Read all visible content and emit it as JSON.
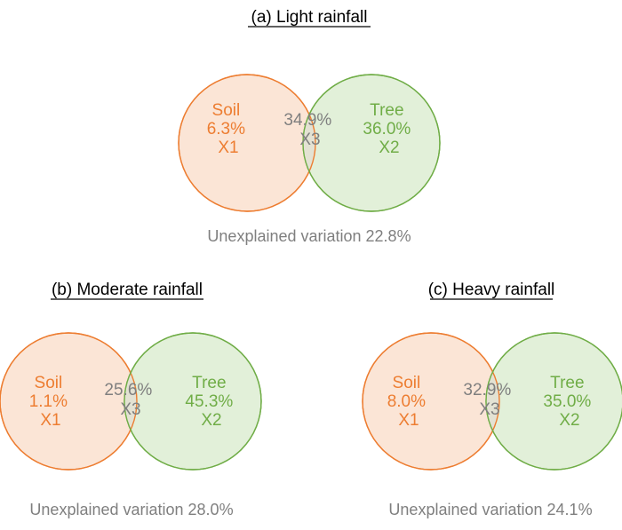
{
  "colors": {
    "soil": "#ED7D31",
    "soil_fill": "#FBE5D6",
    "tree": "#70AD47",
    "tree_fill": "#E2F0D9",
    "overlap": "#E3E2D3",
    "shared_text": "#7F7F7F",
    "unexplained_text": "#7F7F7F",
    "title_text": "#000000"
  },
  "panels": [
    {
      "title": "(a) Light rainfall",
      "soil": {
        "name": "Soil",
        "value": "6.3%",
        "code": "X1"
      },
      "shared": {
        "value": "34.9%",
        "code": "X3"
      },
      "tree": {
        "name": "Tree",
        "value": "36.0%",
        "code": "X2"
      },
      "unexplained": "Unexplained variation 22.8%"
    },
    {
      "title": "(b) Moderate rainfall",
      "soil": {
        "name": "Soil",
        "value": "1.1%",
        "code": "X1"
      },
      "shared": {
        "value": "25.6%",
        "code": "X3"
      },
      "tree": {
        "name": "Tree",
        "value": "45.3%",
        "code": "X2"
      },
      "unexplained": "Unexplained variation 28.0%"
    },
    {
      "title": "(c) Heavy rainfall",
      "soil": {
        "name": "Soil",
        "value": "8.0%",
        "code": "X1"
      },
      "shared": {
        "value": "32.9%",
        "code": "X3"
      },
      "tree": {
        "name": "Tree",
        "value": "35.0%",
        "code": "X2"
      },
      "unexplained": "Unexplained variation 24.1%"
    }
  ]
}
